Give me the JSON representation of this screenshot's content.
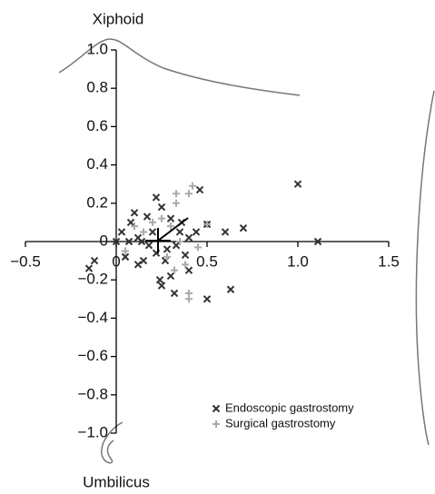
{
  "chart_data": {
    "type": "scatter",
    "top_label": "Xiphoid",
    "bottom_label": "Umbilicus",
    "xlim": [
      -0.5,
      1.5
    ],
    "xticks": [
      {
        "value": -0.5,
        "label": "−0.5"
      },
      0,
      0.5,
      {
        "value": 1,
        "label": "1.0"
      },
      1.5
    ],
    "ylim": [
      -1,
      1
    ],
    "yticks": [
      {
        "value": 1,
        "label": "1.0"
      },
      0.8,
      0.6,
      0.4,
      0.2,
      0,
      {
        "value": -0.2,
        "label": "−0.2"
      },
      {
        "value": -0.4,
        "label": "−0.4"
      },
      {
        "value": -0.6,
        "label": "−0.6"
      },
      {
        "value": -0.8,
        "label": "−0.8"
      },
      {
        "value": -1,
        "label": "−1.0"
      }
    ],
    "series": [
      {
        "name": "Endoscopic gastrostomy",
        "color": "#333333",
        "marker": "x",
        "x": [
          1.0,
          1.11,
          0.7,
          0.6,
          0.46,
          0.5,
          0.5,
          0.63,
          0.22,
          0.08,
          0.1,
          0.17,
          0.25,
          0.3,
          0.35,
          0.4,
          0.38,
          0.4,
          0.3,
          0.25,
          0.24,
          0.27,
          0.15,
          0.12,
          0.05,
          -0.12,
          -0.15,
          0.0,
          0.03,
          0.07,
          0.12,
          0.18,
          0.2,
          0.28,
          0.33,
          0.36,
          0.44,
          0.32,
          0.14,
          0.22
        ],
        "values": [
          0.3,
          0.0,
          0.07,
          0.05,
          0.27,
          0.09,
          -0.3,
          -0.25,
          0.23,
          0.1,
          0.15,
          0.13,
          0.18,
          0.12,
          0.05,
          0.02,
          -0.07,
          -0.15,
          -0.18,
          -0.23,
          -0.2,
          -0.1,
          -0.1,
          -0.12,
          -0.08,
          -0.1,
          -0.14,
          0.0,
          0.05,
          0.0,
          0.02,
          -0.02,
          0.05,
          -0.04,
          -0.02,
          0.1,
          0.05,
          -0.27,
          0.0,
          -0.06
        ]
      },
      {
        "name": "Surgical gastrostomy",
        "color": "#aaaaaa",
        "marker": "+",
        "x": [
          0.42,
          0.4,
          0.33,
          0.33,
          0.5,
          0.38,
          0.4,
          0.4,
          0.45,
          0.3,
          0.25,
          0.35,
          0.2,
          0.1,
          0.15,
          0.28,
          0.32,
          0.05
        ],
        "values": [
          0.29,
          0.25,
          0.25,
          0.2,
          0.09,
          -0.12,
          -0.27,
          -0.3,
          -0.03,
          0.08,
          0.12,
          0.0,
          0.1,
          0.08,
          0.05,
          -0.08,
          -0.15,
          -0.05
        ]
      }
    ]
  }
}
